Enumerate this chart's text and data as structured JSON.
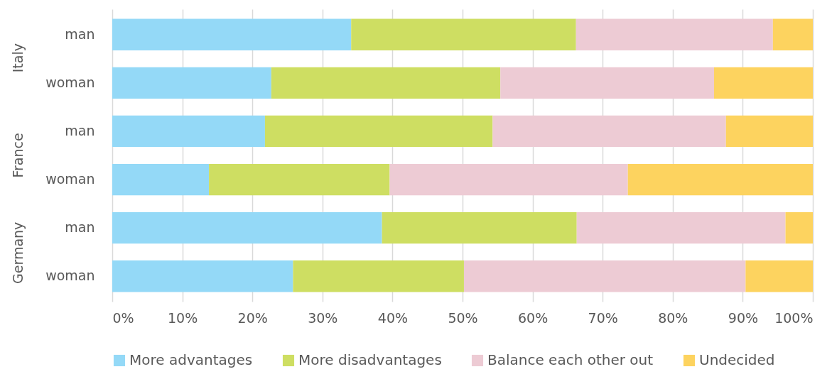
{
  "chart_data": {
    "type": "bar",
    "orientation": "horizontal",
    "stacked": true,
    "categories": [
      "man",
      "woman",
      "man",
      "woman",
      "man",
      "woman"
    ],
    "annotations": [
      "Italy",
      "France",
      "Germany"
    ],
    "series": [
      {
        "name": "More advantages",
        "color": "#94d9f7",
        "values": [
          34.1,
          22.7,
          21.8,
          13.8,
          38.5,
          25.8
        ]
      },
      {
        "name": "More disadvantages",
        "color": "#cede62",
        "values": [
          32.1,
          32.7,
          32.5,
          25.8,
          27.8,
          24.4
        ]
      },
      {
        "name": "Balance each other out",
        "color": "#edcbd4",
        "values": [
          28.1,
          30.5,
          33.3,
          34.0,
          29.8,
          40.2
        ]
      },
      {
        "name": "Undecided",
        "color": "#fdd35f",
        "values": [
          5.7,
          14.1,
          12.4,
          26.4,
          3.9,
          9.6
        ]
      }
    ],
    "xlim": [
      0,
      100
    ],
    "xticks": [
      {
        "value": 0,
        "label": "0%"
      },
      {
        "value": 10,
        "label": "10%"
      },
      {
        "value": 20,
        "label": "20%"
      },
      {
        "value": 30,
        "label": "30%"
      },
      {
        "value": 40,
        "label": "40%"
      },
      {
        "value": 50,
        "label": "50%"
      },
      {
        "value": 60,
        "label": "60%"
      },
      {
        "value": 70,
        "label": "70%"
      },
      {
        "value": 80,
        "label": "80%"
      },
      {
        "value": 90,
        "label": "90%"
      },
      {
        "value": 100,
        "label": "100%"
      }
    ],
    "grid": "x",
    "legend": "bottom"
  }
}
